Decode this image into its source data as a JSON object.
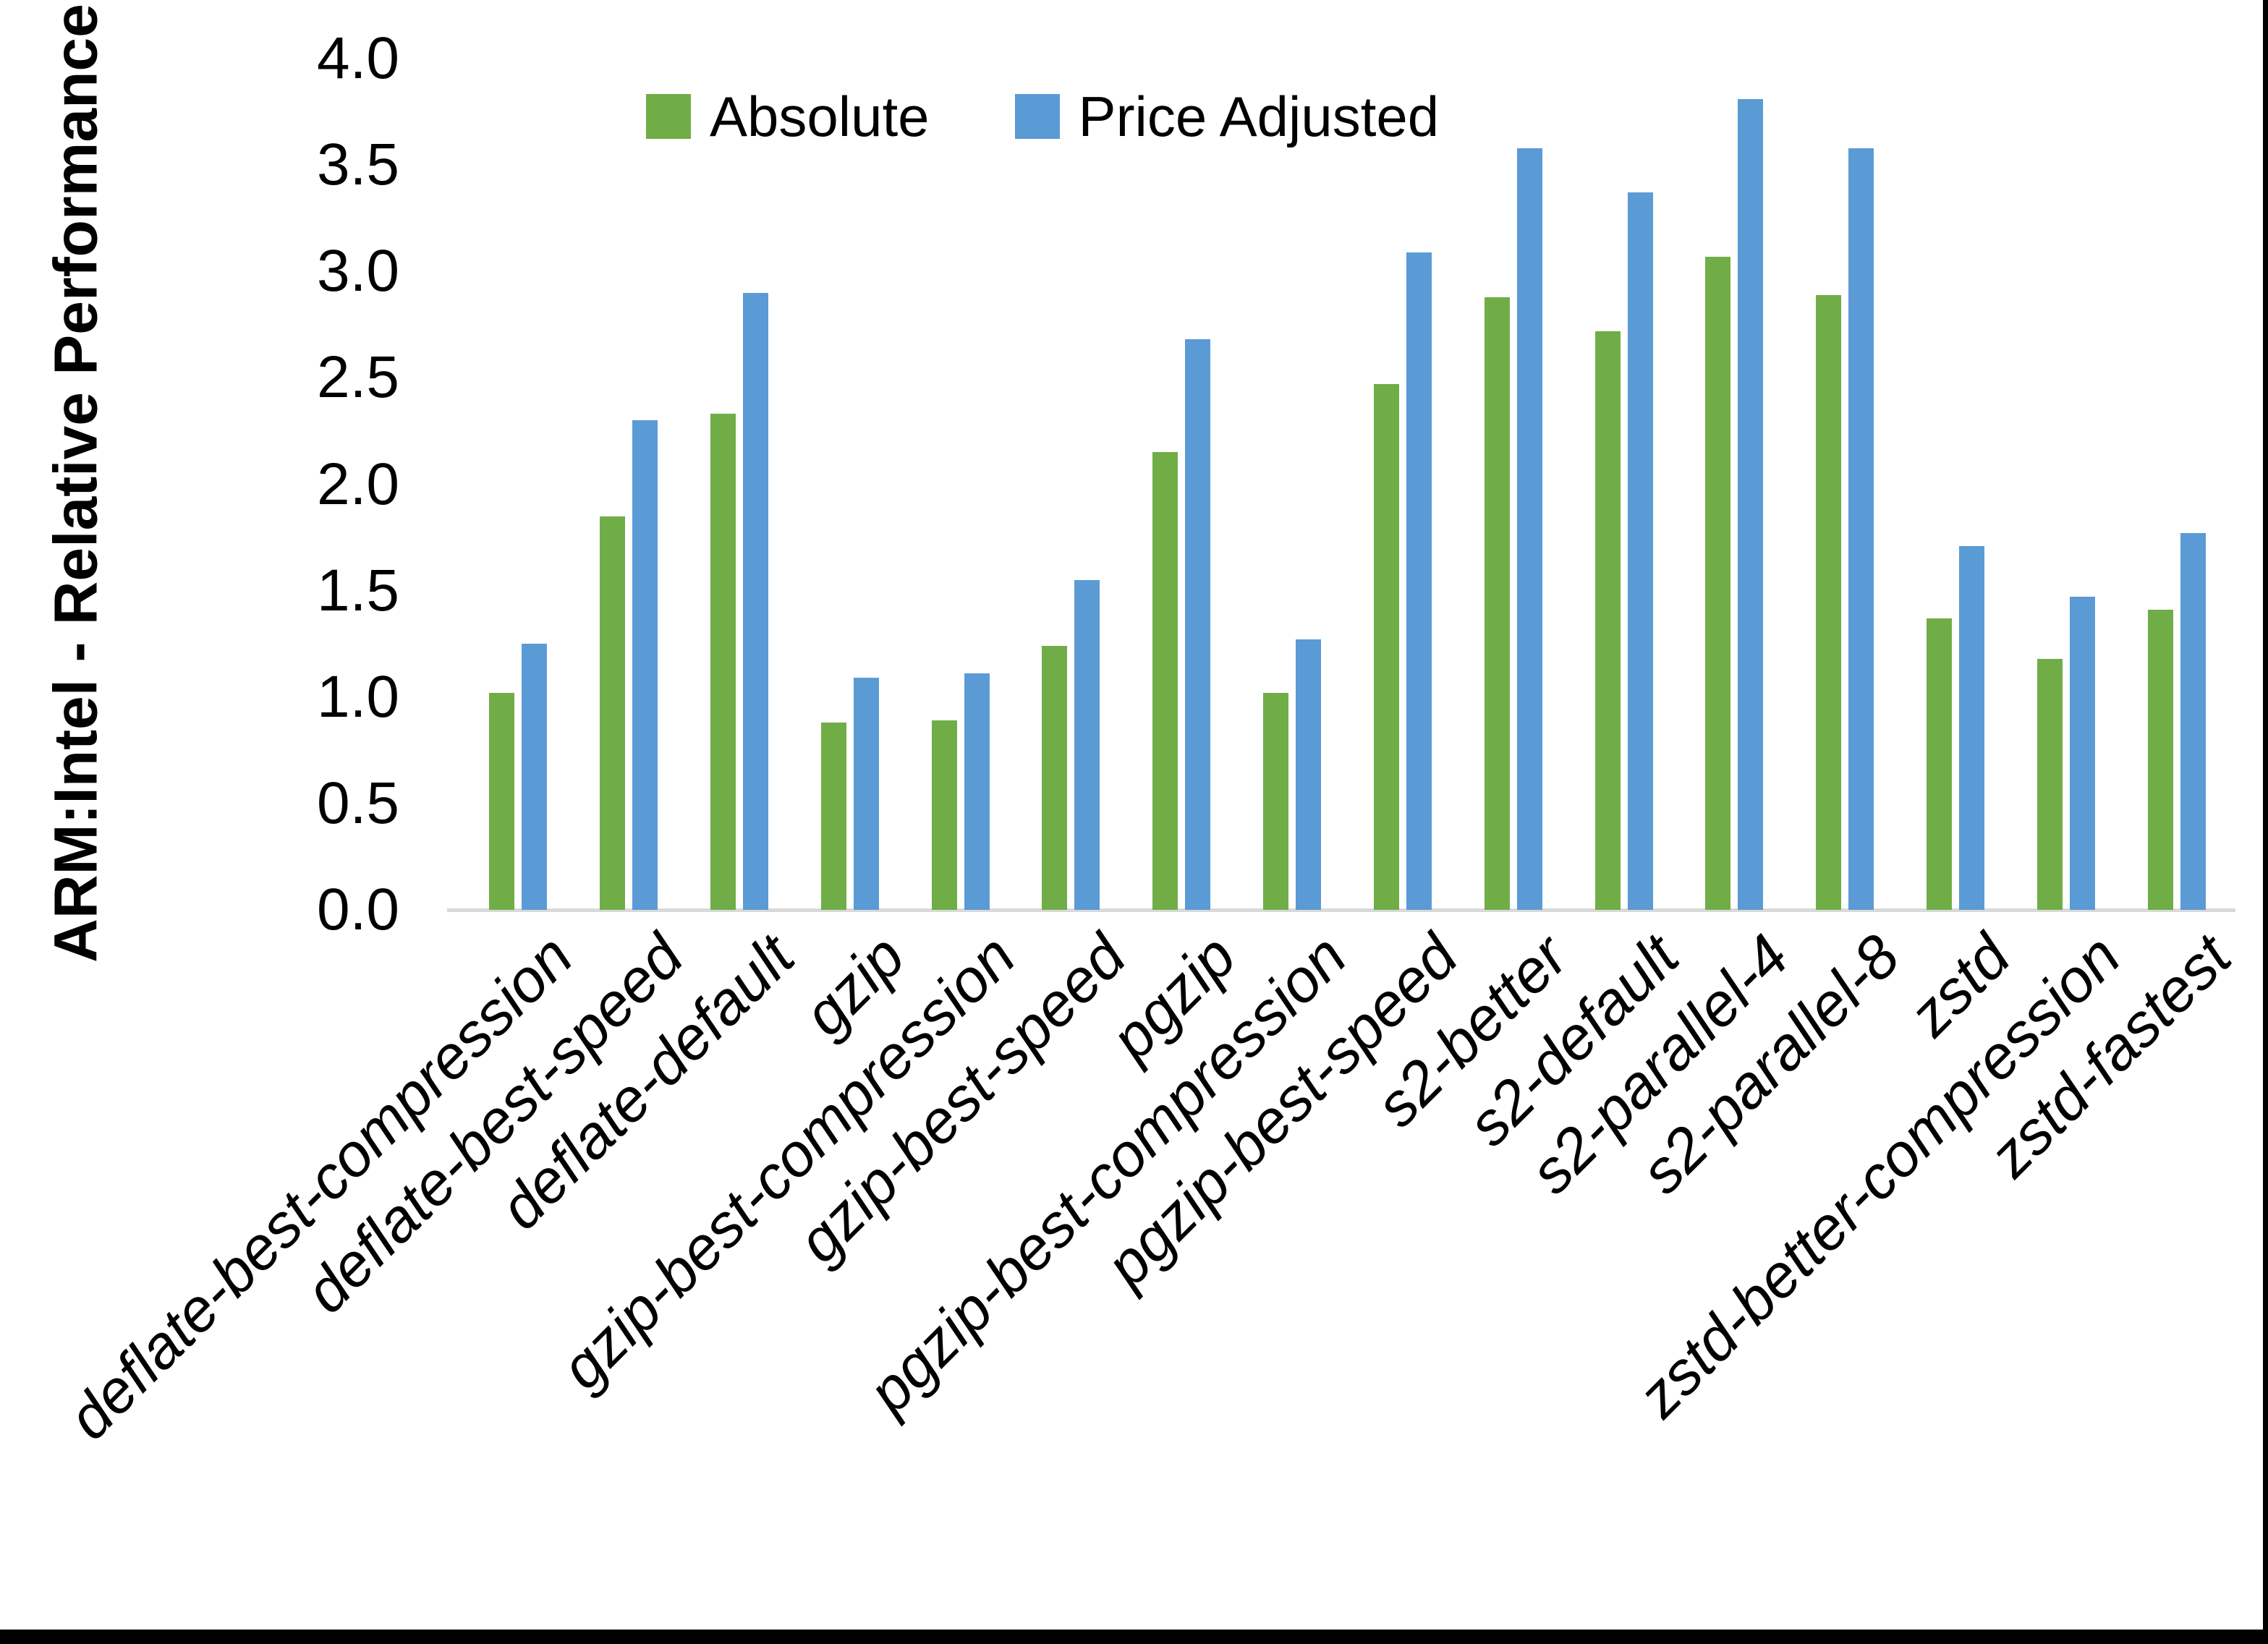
{
  "y_axis": {
    "title": "ARM:Intel - Relative Performance",
    "tick_labels": [
      "4.0",
      "3.5",
      "3.0",
      "2.5",
      "2.0",
      "1.5",
      "1.0",
      "0.5",
      "0.0"
    ]
  },
  "legend": {
    "items": [
      {
        "label": "Absolute",
        "color": "#70ad47"
      },
      {
        "label": "Price Adjusted",
        "color": "#5b9bd5"
      }
    ]
  },
  "colors": {
    "absolute_green": "#70ad47",
    "price_adjusted_blue": "#5b9bd5",
    "axis_line_gray": "#d9d9d9",
    "text_black": "#000000",
    "background": "#ffffff",
    "frame_black": "#000000"
  },
  "chart_data": {
    "type": "bar",
    "title": "",
    "xlabel": "",
    "ylabel": "ARM:Intel - Relative Performance",
    "ylim": [
      0.0,
      4.0
    ],
    "ytick_step": 0.5,
    "grid": false,
    "legend_position": "top-center",
    "categories": [
      "deflate-best-compression",
      "deflate-best-speed",
      "deflate-default",
      "gzip",
      "gzip-best-compression",
      "gzip-best-speed",
      "pgzip",
      "pgzip-best-compression",
      "pgzip-best-speed",
      "s2-better",
      "s2-default",
      "s2-parallel-4",
      "s2-parallel-8",
      "zstd",
      "zstd-better-compression",
      "zstd-fastest"
    ],
    "series": [
      {
        "name": "Absolute",
        "color": "#70ad47",
        "values": [
          1.02,
          1.85,
          2.33,
          0.88,
          0.89,
          1.24,
          2.15,
          1.02,
          2.47,
          2.88,
          2.72,
          3.07,
          2.89,
          1.37,
          1.18,
          1.41
        ]
      },
      {
        "name": "Price Adjusted",
        "color": "#5b9bd5",
        "values": [
          1.25,
          2.3,
          2.9,
          1.09,
          1.11,
          1.55,
          2.68,
          1.27,
          3.09,
          3.58,
          3.37,
          3.81,
          3.58,
          1.71,
          1.47,
          1.77
        ]
      }
    ]
  }
}
